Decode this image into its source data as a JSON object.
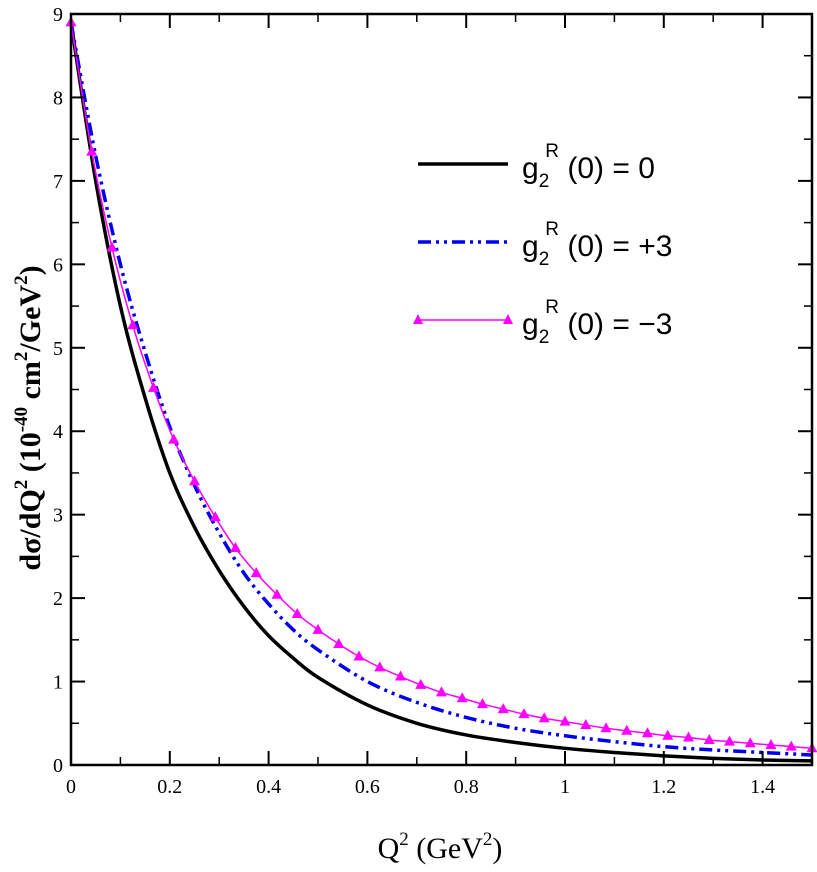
{
  "chart_data": {
    "type": "line",
    "title": "",
    "xlabel": {
      "base": "Q",
      "sup": "2",
      "unit_open": " (GeV",
      "unit_sup": "2",
      "unit_close": ")"
    },
    "ylabel": {
      "prefix": "dσ/dQ",
      "prefix_sup": "2",
      "unit_open": " (10",
      "exp": "-40",
      "unit_mid": " cm",
      "unit_sup1": "2",
      "unit_slash": "/GeV",
      "unit_sup2": "2",
      "unit_close": ")"
    },
    "xlim": [
      0,
      1.5
    ],
    "ylim": [
      0,
      9
    ],
    "x_ticks": [
      0,
      0.2,
      0.4,
      0.6,
      0.8,
      1,
      1.2,
      1.4
    ],
    "x_tick_labels": [
      "0",
      "0.2",
      "0.4",
      "0.6",
      "0.8",
      "1",
      "1.2",
      "1.4"
    ],
    "y_ticks": [
      0,
      1,
      2,
      3,
      4,
      5,
      6,
      7,
      8,
      9
    ],
    "y_tick_labels": [
      "0",
      "1",
      "2",
      "3",
      "4",
      "5",
      "6",
      "7",
      "8",
      "9"
    ],
    "legend_position": "top-right",
    "series": [
      {
        "name": "g2R(0)=0",
        "label": {
          "g": "g",
          "sub": "2",
          "sup": "R",
          "rest": " (0) = 0"
        },
        "color": "#000000",
        "style": "solid",
        "x": [
          0,
          0.05,
          0.1,
          0.15,
          0.2,
          0.25,
          0.3,
          0.35,
          0.4,
          0.45,
          0.5,
          0.6,
          0.7,
          0.8,
          0.9,
          1.0,
          1.1,
          1.2,
          1.3,
          1.4,
          1.5
        ],
        "y": [
          8.9,
          7.0,
          5.5,
          4.4,
          3.5,
          2.85,
          2.33,
          1.9,
          1.55,
          1.28,
          1.05,
          0.72,
          0.5,
          0.36,
          0.27,
          0.2,
          0.15,
          0.11,
          0.08,
          0.06,
          0.05
        ]
      },
      {
        "name": "g2R(0)=+3",
        "label": {
          "g": "g",
          "sub": "2",
          "sup": "R",
          "rest": " (0) = +3"
        },
        "color": "#0000ee",
        "style": "dash-dot",
        "x": [
          0,
          0.05,
          0.1,
          0.15,
          0.2,
          0.25,
          0.3,
          0.35,
          0.4,
          0.45,
          0.5,
          0.6,
          0.7,
          0.8,
          0.9,
          1.0,
          1.1,
          1.2,
          1.3,
          1.4,
          1.5
        ],
        "y": [
          8.9,
          7.3,
          6.0,
          4.95,
          4.05,
          3.35,
          2.78,
          2.3,
          1.93,
          1.62,
          1.38,
          1.0,
          0.75,
          0.57,
          0.44,
          0.35,
          0.28,
          0.22,
          0.18,
          0.15,
          0.12
        ]
      },
      {
        "name": "g2R(0)=-3",
        "label": {
          "g": "g",
          "sub": "2",
          "sup": "R",
          "rest": " (0) = −3"
        },
        "color": "#ff00ff",
        "style": "solid-triangles",
        "x": [
          0,
          0.042,
          0.083,
          0.125,
          0.167,
          0.208,
          0.25,
          0.292,
          0.333,
          0.375,
          0.417,
          0.458,
          0.5,
          0.542,
          0.583,
          0.625,
          0.667,
          0.708,
          0.75,
          0.792,
          0.833,
          0.875,
          0.917,
          0.958,
          1.0,
          1.042,
          1.083,
          1.125,
          1.167,
          1.208,
          1.25,
          1.292,
          1.333,
          1.375,
          1.417,
          1.458,
          1.5
        ],
        "y": [
          8.9,
          7.35,
          6.2,
          5.27,
          4.52,
          3.9,
          3.4,
          2.97,
          2.6,
          2.3,
          2.04,
          1.81,
          1.62,
          1.45,
          1.3,
          1.17,
          1.06,
          0.96,
          0.87,
          0.8,
          0.73,
          0.67,
          0.61,
          0.56,
          0.52,
          0.48,
          0.44,
          0.41,
          0.38,
          0.35,
          0.33,
          0.3,
          0.28,
          0.26,
          0.24,
          0.22,
          0.2
        ]
      }
    ]
  }
}
